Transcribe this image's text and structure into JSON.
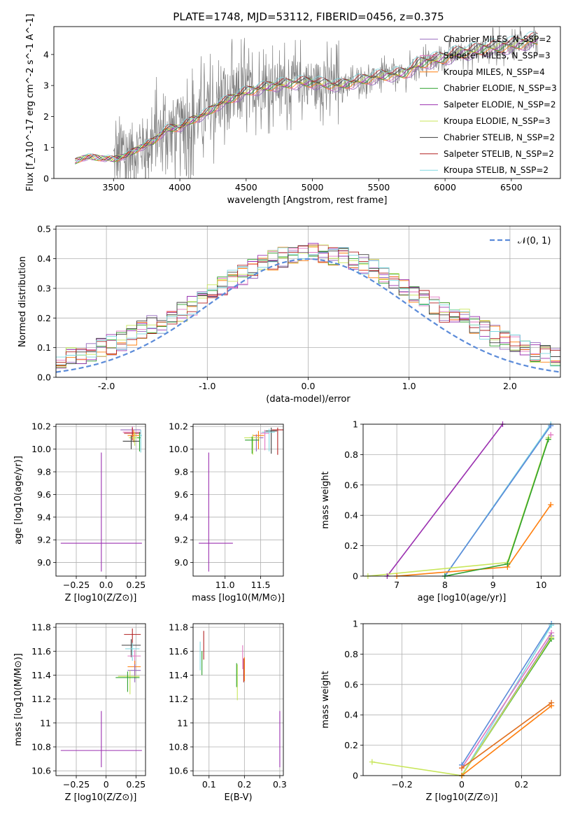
{
  "figure_title": "PLATE=1748, MJD=53112, FIBERID=0456, z=0.375",
  "chart_data": [
    {
      "id": "spectrum",
      "type": "line",
      "title": "PLATE=1748, MJD=53112, FIBERID=0456, z=0.375",
      "xlabel": "wavelength [Angstrom, rest frame]",
      "ylabel": "Flux [f_λ10^-17 erg cm^-2 s^-1 A^-1]",
      "xlim": [
        3050,
        6870
      ],
      "ylim": [
        0,
        4.9
      ],
      "xticks": [
        3500,
        4000,
        4500,
        5000,
        5500,
        6000,
        6500
      ],
      "yticks": [
        0,
        1,
        2,
        3,
        4
      ],
      "grid": false,
      "legend_position": "top-right",
      "series": [
        {
          "name": "Chabrier MILES, N_SSP=2",
          "color": "#9467bd"
        },
        {
          "name": "Salpeter MILES, N_SSP=3",
          "color": "#e377c2"
        },
        {
          "name": "Kroupa MILES, N_SSP=4",
          "color": "#ff7f0e"
        },
        {
          "name": "Chabrier ELODIE, N_SSP=3",
          "color": "#2ca02c"
        },
        {
          "name": "Salpeter ELODIE, N_SSP=2",
          "color": "#9b30b0"
        },
        {
          "name": "Kroupa ELODIE, N_SSP=3",
          "color": "#c8e65a"
        },
        {
          "name": "Chabrier STELIB, N_SSP=2",
          "color": "#404040"
        },
        {
          "name": "Salpeter STELIB, N_SSP=2",
          "color": "#b22222"
        },
        {
          "name": "Kroupa STELIB, N_SSP=2",
          "color": "#7fd8e0"
        }
      ],
      "model_curve": {
        "x": [
          3210,
          3260,
          3300,
          3350,
          3400,
          3450,
          3500,
          3600,
          3700,
          3800,
          3900,
          4000,
          4100,
          4200,
          4300,
          4400,
          4500,
          4600,
          4700,
          4800,
          4900,
          5000,
          5100,
          5200,
          5300,
          5400,
          5500,
          5600,
          5700,
          5800,
          5900,
          6000,
          6100,
          6200,
          6300,
          6400,
          6500,
          6600,
          6700
        ],
        "y": [
          0.55,
          0.65,
          0.7,
          0.68,
          0.66,
          0.65,
          0.62,
          0.75,
          1.0,
          1.2,
          1.6,
          1.65,
          1.9,
          2.1,
          2.4,
          2.6,
          2.8,
          2.9,
          3.0,
          3.05,
          3.1,
          3.1,
          3.05,
          3.0,
          3.1,
          3.2,
          3.3,
          3.35,
          3.4,
          3.7,
          3.8,
          3.9,
          4.05,
          4.1,
          4.2,
          4.25,
          4.3,
          4.4,
          4.5
        ]
      },
      "data_start": 3500,
      "data_end": 6700
    },
    {
      "id": "residuals",
      "type": "line",
      "xlabel": "(data-model)/error",
      "ylabel": "Normed distribution",
      "xlim": [
        -2.5,
        2.5
      ],
      "ylim": [
        0,
        0.51
      ],
      "xticks": [
        -2,
        -1,
        0,
        1,
        2
      ],
      "yticks": [
        0.0,
        0.1,
        0.2,
        0.3,
        0.4,
        0.5
      ],
      "grid": true,
      "legend_position": "top-right",
      "legend": [
        "𝒩(0, 1)"
      ],
      "gaussian_color": "#5b8bd9"
    },
    {
      "id": "age_vs_Z",
      "type": "scatter",
      "xlabel": "Z [log10(Z/Z⊙)]",
      "ylabel": "age  [log10(age/yr)]",
      "xlim": [
        -0.42,
        0.33
      ],
      "ylim": [
        8.88,
        10.22
      ],
      "xticks": [
        -0.25,
        0.0,
        0.25
      ],
      "yticks": [
        9.0,
        9.2,
        9.4,
        9.6,
        9.8,
        10.0,
        10.2
      ],
      "grid": true,
      "points": [
        {
          "x": -0.04,
          "y": 9.17,
          "xerr": [
            0.34,
            0.34
          ],
          "yerr": [
            0.25,
            0.8
          ],
          "color": "#9b30b0"
        },
        {
          "x": 0.22,
          "y": 10.17,
          "xerr": [
            0.1,
            0.07
          ],
          "yerr": [
            0.03,
            0.03
          ],
          "color": "#9467bd"
        },
        {
          "x": 0.22,
          "y": 10.15,
          "xerr": [
            0.08,
            0.07
          ],
          "yerr": [
            0.05,
            0.05
          ],
          "color": "#e377c2"
        },
        {
          "x": 0.22,
          "y": 10.14,
          "xerr": [
            0.07,
            0.07
          ],
          "yerr": [
            0.06,
            0.05
          ],
          "color": "#b22222"
        },
        {
          "x": 0.23,
          "y": 10.12,
          "xerr": [
            0.05,
            0.06
          ],
          "yerr": [
            0.06,
            0.05
          ],
          "color": "#ff7f0e"
        },
        {
          "x": 0.24,
          "y": 10.1,
          "xerr": [
            0.05,
            0.05
          ],
          "yerr": [
            0.07,
            0.05
          ],
          "color": "#c8e65a"
        },
        {
          "x": 0.21,
          "y": 10.07,
          "xerr": [
            0.07,
            0.07
          ],
          "yerr": [
            0.07,
            0.05
          ],
          "color": "#404040"
        },
        {
          "x": 0.28,
          "y": 10.1,
          "xerr": [
            0.02,
            0.01
          ],
          "yerr": [
            0.12,
            0.05
          ],
          "color": "#2ca02c"
        },
        {
          "x": 0.29,
          "y": 10.12,
          "xerr": [
            0.01,
            0.01
          ],
          "yerr": [
            0.15,
            0.05
          ],
          "color": "#7fd8e0"
        }
      ]
    },
    {
      "id": "age_vs_mass",
      "type": "scatter",
      "xlabel": "mass [log10(M/M⊙)]",
      "ylabel": "",
      "xlim": [
        10.55,
        11.82
      ],
      "ylim": [
        8.88,
        10.22
      ],
      "xticks": [
        11.0,
        11.5
      ],
      "yticks": [
        9.0,
        9.2,
        9.4,
        9.6,
        9.8,
        10.0,
        10.2
      ],
      "grid": true,
      "points": [
        {
          "x": 10.77,
          "y": 9.17,
          "xerr": [
            0.14,
            0.34
          ],
          "yerr": [
            0.25,
            0.8
          ],
          "color": "#9b30b0"
        },
        {
          "x": 11.74,
          "y": 10.17,
          "xerr": [
            0.08,
            0.08
          ],
          "yerr": [
            0.22,
            0.02
          ],
          "color": "#b22222"
        },
        {
          "x": 11.65,
          "y": 10.16,
          "xerr": [
            0.08,
            0.08
          ],
          "yerr": [
            0.2,
            0.03
          ],
          "color": "#404040"
        },
        {
          "x": 11.62,
          "y": 10.15,
          "xerr": [
            0.1,
            0.08
          ],
          "yerr": [
            0.17,
            0.03
          ],
          "color": "#7fd8e0"
        },
        {
          "x": 11.56,
          "y": 10.14,
          "xerr": [
            0.06,
            0.06
          ],
          "yerr": [
            0.15,
            0.03
          ],
          "color": "#e377c2"
        },
        {
          "x": 11.47,
          "y": 10.12,
          "xerr": [
            0.08,
            0.08
          ],
          "yerr": [
            0.12,
            0.04
          ],
          "color": "#ff7f0e"
        },
        {
          "x": 11.44,
          "y": 10.1,
          "xerr": [
            0.1,
            0.1
          ],
          "yerr": [
            0.12,
            0.03
          ],
          "color": "#9467bd"
        },
        {
          "x": 11.39,
          "y": 10.1,
          "xerr": [
            0.12,
            0.1
          ],
          "yerr": [
            0.15,
            0.03
          ],
          "color": "#c8e65a"
        },
        {
          "x": 11.38,
          "y": 10.08,
          "xerr": [
            0.1,
            0.1
          ],
          "yerr": [
            0.12,
            0.03
          ],
          "color": "#2ca02c"
        }
      ]
    },
    {
      "id": "massweight_vs_age",
      "type": "line",
      "xlabel": "age  [log10(age/yr)]",
      "ylabel": "mass weight",
      "xlim": [
        6.3,
        10.4
      ],
      "ylim": [
        0,
        1.0
      ],
      "xticks": [
        7,
        8,
        9,
        10
      ],
      "yticks": [
        0.0,
        0.2,
        0.4,
        0.6,
        0.8,
        1.0
      ],
      "grid": true,
      "series": [
        {
          "color": "#9b30b0",
          "x": [
            6.8,
            9.2
          ],
          "y": [
            0.0,
            1.0
          ]
        },
        {
          "color": "#7fd8e0",
          "x": [
            8.0,
            10.2
          ],
          "y": [
            0.0,
            1.0
          ]
        },
        {
          "color": "#5b8bd9",
          "x": [
            8.0,
            10.2
          ],
          "y": [
            0.0,
            0.99
          ]
        },
        {
          "color": "#ff7f0e",
          "x": [
            7.0,
            9.3,
            10.2
          ],
          "y": [
            0.0,
            0.06,
            0.47
          ]
        },
        {
          "color": "#c8e65a",
          "x": [
            6.4,
            9.3,
            10.15
          ],
          "y": [
            0.0,
            0.09,
            0.91
          ]
        },
        {
          "color": "#2ca02c",
          "x": [
            8.0,
            9.3,
            10.15
          ],
          "y": [
            0.0,
            0.08,
            0.9
          ]
        },
        {
          "color": "#e377c2",
          "x": [
            10.2
          ],
          "y": [
            0.93
          ]
        }
      ]
    },
    {
      "id": "mass_vs_Z",
      "type": "scatter",
      "xlabel": "Z [log10(Z/Z⊙)]",
      "ylabel": "mass [log10(M/M⊙)]",
      "xlim": [
        -0.42,
        0.33
      ],
      "ylim": [
        10.56,
        11.83
      ],
      "xticks": [
        -0.25,
        0.0,
        0.25
      ],
      "yticks": [
        10.6,
        10.8,
        11.0,
        11.2,
        11.4,
        11.6,
        11.8
      ],
      "grid": true,
      "points": [
        {
          "x": -0.04,
          "y": 10.77,
          "xerr": [
            0.34,
            0.34
          ],
          "yerr": [
            0.14,
            0.33
          ],
          "color": "#9b30b0"
        },
        {
          "x": 0.22,
          "y": 11.74,
          "xerr": [
            0.07,
            0.07
          ],
          "yerr": [
            0.1,
            0.05
          ],
          "color": "#b22222"
        },
        {
          "x": 0.21,
          "y": 11.65,
          "xerr": [
            0.08,
            0.08
          ],
          "yerr": [
            0.1,
            0.05
          ],
          "color": "#404040"
        },
        {
          "x": 0.22,
          "y": 11.62,
          "xerr": [
            0.06,
            0.06
          ],
          "yerr": [
            0.1,
            0.05
          ],
          "color": "#7fd8e0"
        },
        {
          "x": 0.24,
          "y": 11.56,
          "xerr": [
            0.06,
            0.05
          ],
          "yerr": [
            0.1,
            0.05
          ],
          "color": "#e377c2"
        },
        {
          "x": 0.24,
          "y": 11.47,
          "xerr": [
            0.06,
            0.05
          ],
          "yerr": [
            0.1,
            0.05
          ],
          "color": "#ff7f0e"
        },
        {
          "x": 0.24,
          "y": 11.44,
          "xerr": [
            0.06,
            0.05
          ],
          "yerr": [
            0.1,
            0.05
          ],
          "color": "#9467bd"
        },
        {
          "x": 0.2,
          "y": 11.39,
          "xerr": [
            0.1,
            0.08
          ],
          "yerr": [
            0.15,
            0.05
          ],
          "color": "#c8e65a"
        },
        {
          "x": 0.18,
          "y": 11.38,
          "xerr": [
            0.1,
            0.1
          ],
          "yerr": [
            0.12,
            0.05
          ],
          "color": "#2ca02c"
        }
      ]
    },
    {
      "id": "mass_vs_EBV",
      "type": "scatter",
      "xlabel": "E(B-V)",
      "ylabel": "",
      "xlim": [
        0.055,
        0.31
      ],
      "ylim": [
        10.56,
        11.83
      ],
      "xticks": [
        0.1,
        0.2,
        0.3
      ],
      "yticks": [
        10.6,
        10.8,
        11.0,
        11.2,
        11.4,
        11.6,
        11.8
      ],
      "grid": true,
      "points": [
        {
          "x": 0.3,
          "y": 10.77,
          "xerr": [
            0,
            0
          ],
          "yerr": [
            0.14,
            0.33
          ],
          "color": "#9b30b0"
        },
        {
          "x": 0.085,
          "y": 11.65,
          "xerr": [
            0,
            0
          ],
          "yerr": [
            0.12,
            0.12
          ],
          "color": "#b22222"
        },
        {
          "x": 0.075,
          "y": 11.56,
          "xerr": [
            0,
            0
          ],
          "yerr": [
            0.12,
            0.12
          ],
          "color": "#7fd8e0"
        },
        {
          "x": 0.08,
          "y": 11.5,
          "xerr": [
            0,
            0
          ],
          "yerr": [
            0.1,
            0.1
          ],
          "color": "#2ca02c"
        },
        {
          "x": 0.195,
          "y": 11.55,
          "xerr": [
            0,
            0
          ],
          "yerr": [
            0.1,
            0.1
          ],
          "color": "#e377c2"
        },
        {
          "x": 0.2,
          "y": 11.45,
          "xerr": [
            0,
            0
          ],
          "yerr": [
            0.1,
            0.1
          ],
          "color": "#ff7f0e"
        },
        {
          "x": 0.198,
          "y": 11.44,
          "xerr": [
            0,
            0
          ],
          "yerr": [
            0.1,
            0.1
          ],
          "color": "#b22222"
        },
        {
          "x": 0.18,
          "y": 11.39,
          "xerr": [
            0,
            0
          ],
          "yerr": [
            0.2,
            0.1
          ],
          "color": "#c8e65a"
        },
        {
          "x": 0.178,
          "y": 11.4,
          "xerr": [
            0,
            0
          ],
          "yerr": [
            0.1,
            0.1
          ],
          "color": "#2ca02c"
        }
      ]
    },
    {
      "id": "massweight_vs_Z",
      "type": "line",
      "xlabel": "Z [log10(Z/Z⊙)]",
      "ylabel": "mass weight",
      "xlim": [
        -0.33,
        0.33
      ],
      "ylim": [
        0,
        1.0
      ],
      "xticks": [
        -0.2,
        0.0,
        0.2
      ],
      "yticks": [
        0.0,
        0.2,
        0.4,
        0.6,
        0.8,
        1.0
      ],
      "grid": true,
      "series": [
        {
          "color": "#5b8bd9",
          "x": [
            0.0,
            0.3
          ],
          "y": [
            0.07,
            1.0
          ]
        },
        {
          "color": "#7fd8e0",
          "x": [
            0.0,
            0.3
          ],
          "y": [
            0.0,
            0.99
          ]
        },
        {
          "color": "#e377c2",
          "x": [
            0.0,
            0.3
          ],
          "y": [
            0.05,
            0.94
          ]
        },
        {
          "color": "#9467bd",
          "x": [
            0.0,
            0.3
          ],
          "y": [
            0.0,
            0.92
          ]
        },
        {
          "color": "#2ca02c",
          "x": [
            0.0,
            0.3
          ],
          "y": [
            0.0,
            0.9
          ]
        },
        {
          "color": "#c8e65a",
          "x": [
            -0.3,
            0.0,
            0.3
          ],
          "y": [
            0.09,
            0.0,
            0.91
          ]
        },
        {
          "color": "#ff7f0e",
          "x": [
            0.0,
            0.3
          ],
          "y": [
            0.0,
            0.46
          ]
        },
        {
          "color": "#e07020",
          "x": [
            0.0,
            0.3
          ],
          "y": [
            0.05,
            0.48
          ]
        }
      ]
    }
  ]
}
